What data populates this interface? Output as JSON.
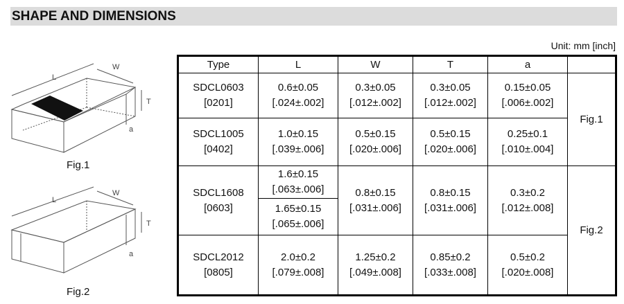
{
  "section_title": "SHAPE AND DIMENSIONS",
  "unit": "Unit: mm [inch]",
  "figures": [
    {
      "label": "Fig.1",
      "dims": [
        "L",
        "W",
        "T",
        "a"
      ]
    },
    {
      "label": "Fig.2",
      "dims": [
        "L",
        "W",
        "T",
        "a"
      ]
    }
  ],
  "table": {
    "headers": [
      "Type",
      "L",
      "W",
      "T",
      "a",
      ""
    ],
    "rows": [
      {
        "type": "SDCL0603",
        "type_inch": "[0201]",
        "L": [
          "0.6±0.05",
          "[.024±.002]"
        ],
        "W": [
          "0.3±0.05",
          "[.012±.002]"
        ],
        "T": [
          "0.3±0.05",
          "[.012±.002]"
        ],
        "a": [
          "0.15±0.05",
          "[.006±.002]"
        ],
        "fig": "Fig.1"
      },
      {
        "type": "SDCL1005",
        "type_inch": "[0402]",
        "L": [
          "1.0±0.15",
          "[.039±.006]"
        ],
        "W": [
          "0.5±0.15",
          "[.020±.006]"
        ],
        "T": [
          "0.5±0.15",
          "[.020±.006]"
        ],
        "a": [
          "0.25±0.1",
          "[.010±.004]"
        ]
      },
      {
        "type": "SDCL1608",
        "type_inch": "[0603]",
        "L": [
          "1.6±0.15",
          "[.063±.006]"
        ],
        "L2": [
          "1.65±0.15",
          "[.065±.006]"
        ],
        "W": [
          "0.8±0.15",
          "[.031±.006]"
        ],
        "T": [
          "0.8±0.15",
          "[.031±.006]"
        ],
        "a": [
          "0.3±0.2",
          "[.012±.008]"
        ],
        "fig": "Fig.2"
      },
      {
        "type": "SDCL2012",
        "type_inch": "[0805]",
        "L": [
          "2.0±0.2",
          "[.079±.008]"
        ],
        "W": [
          "1.25±0.2",
          "[.049±.008]"
        ],
        "T": [
          "0.85±0.2",
          "[.033±.008]"
        ],
        "a": [
          "0.5±0.2",
          "[.020±.008]"
        ]
      }
    ]
  }
}
